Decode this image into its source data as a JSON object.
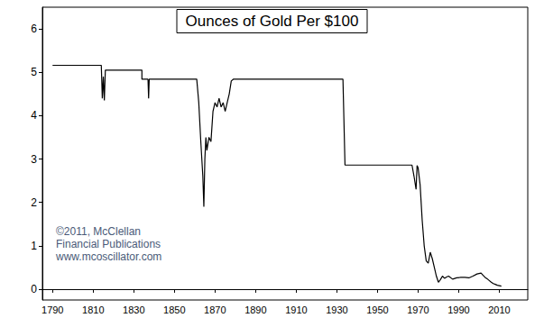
{
  "chart_data": {
    "type": "line",
    "title": "Ounces of Gold Per $100",
    "annotation": "©2011, McClellan\nFinancial Publications\nwww.mcoscillator.com",
    "x": [
      1790,
      1814,
      1814.5,
      1815,
      1815.5,
      1816,
      1834,
      1834,
      1837,
      1837.3,
      1837.6,
      1861,
      1862,
      1863,
      1864,
      1864.5,
      1865,
      1865.5,
      1866,
      1867,
      1868,
      1869,
      1870,
      1871,
      1872,
      1873,
      1874,
      1875,
      1876,
      1877,
      1878,
      1879,
      1933,
      1934,
      1967,
      1968,
      1969,
      1969.5,
      1970,
      1971,
      1972,
      1973,
      1974,
      1975,
      1976,
      1977,
      1978,
      1979,
      1980,
      1981,
      1982,
      1983,
      1984,
      1985,
      1987,
      1989,
      1991,
      1993,
      1995,
      1997,
      1999,
      2001,
      2002,
      2003,
      2004,
      2005,
      2006,
      2007,
      2008,
      2009,
      2010,
      2011
    ],
    "values": [
      5.16,
      5.16,
      4.4,
      4.9,
      4.35,
      5.05,
      5.05,
      4.84,
      4.84,
      4.4,
      4.84,
      4.84,
      4.3,
      3.4,
      2.6,
      1.9,
      3.0,
      3.5,
      3.2,
      3.5,
      3.4,
      4.1,
      4.3,
      4.2,
      4.4,
      4.2,
      4.3,
      4.1,
      4.3,
      4.5,
      4.8,
      4.84,
      4.84,
      2.86,
      2.86,
      2.6,
      2.3,
      2.85,
      2.8,
      2.4,
      1.6,
      1.0,
      0.65,
      0.6,
      0.85,
      0.7,
      0.5,
      0.3,
      0.16,
      0.22,
      0.3,
      0.25,
      0.28,
      0.3,
      0.23,
      0.26,
      0.27,
      0.27,
      0.26,
      0.3,
      0.35,
      0.37,
      0.32,
      0.27,
      0.24,
      0.2,
      0.16,
      0.13,
      0.11,
      0.09,
      0.08,
      0.07
    ],
    "color": "#000000",
    "xlim": [
      1785,
      2024
    ],
    "xticks": [
      1790,
      1810,
      1830,
      1850,
      1870,
      1890,
      1910,
      1930,
      1950,
      1970,
      1990,
      2010
    ],
    "ylim": [
      -0.25,
      6.5
    ],
    "yticks": [
      0,
      1,
      2,
      3,
      4,
      5,
      6
    ],
    "grid": false
  }
}
